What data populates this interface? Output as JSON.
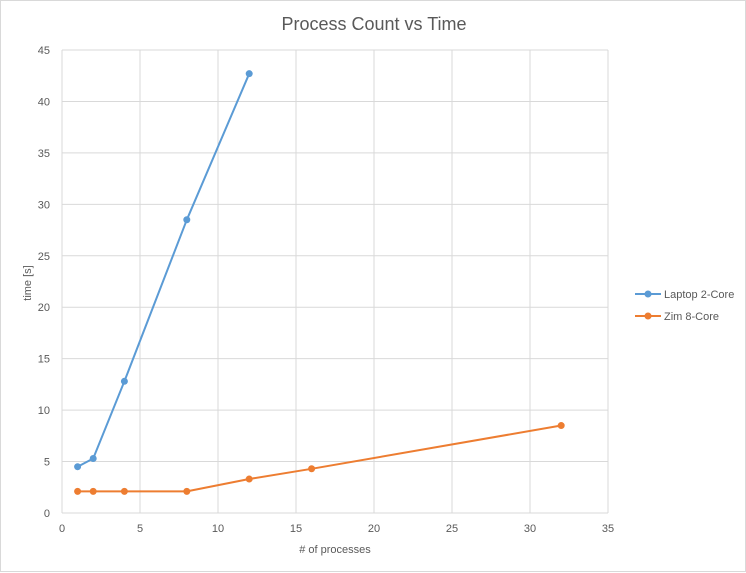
{
  "chart_data": {
    "type": "scatter",
    "title": "Process Count vs Time",
    "xlabel": "# of processes",
    "ylabel": "time [s]",
    "xlim": [
      0,
      35
    ],
    "ylim": [
      0,
      45
    ],
    "xticks": [
      0,
      5,
      10,
      15,
      20,
      25,
      30,
      35
    ],
    "yticks": [
      0,
      5,
      10,
      15,
      20,
      25,
      30,
      35,
      40,
      45
    ],
    "grid": true,
    "legend_position": "right",
    "series": [
      {
        "name": "Laptop 2-Core",
        "color": "#5b9bd5",
        "x": [
          1,
          2,
          4,
          8,
          12
        ],
        "y": [
          4.5,
          5.3,
          12.8,
          28.5,
          42.7
        ]
      },
      {
        "name": "Zim 8-Core",
        "color": "#ed7d31",
        "x": [
          1,
          2,
          4,
          8,
          12,
          16,
          32
        ],
        "y": [
          2.1,
          2.1,
          2.1,
          2.1,
          3.3,
          4.3,
          8.5
        ]
      }
    ]
  }
}
